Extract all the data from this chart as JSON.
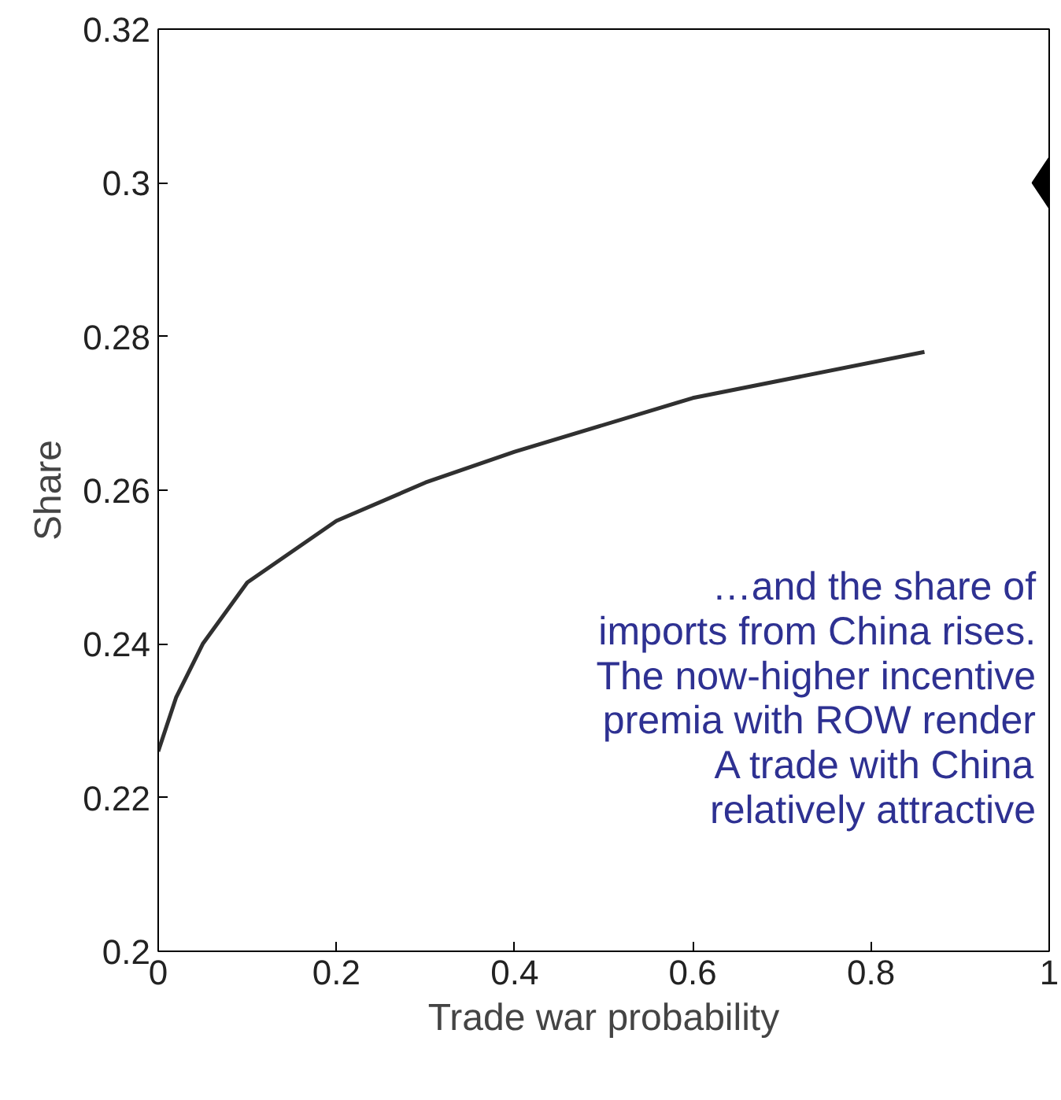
{
  "chart_data": {
    "type": "line",
    "xlabel": "Trade war probability",
    "ylabel": "Share",
    "xlim": [
      0,
      1
    ],
    "ylim": [
      0.2,
      0.32
    ],
    "xticks": [
      0,
      0.2,
      0.4,
      0.6,
      0.8,
      1
    ],
    "yticks": [
      0.2,
      0.22,
      0.24,
      0.26,
      0.28,
      0.3,
      0.32
    ],
    "grid": false,
    "series": [
      {
        "color": "#303030",
        "x": [
          0,
          0.02,
          0.05,
          0.1,
          0.2,
          0.3,
          0.4,
          0.6,
          0.86
        ],
        "values": [
          0.226,
          0.233,
          0.24,
          0.248,
          0.256,
          0.261,
          0.265,
          0.272,
          0.278
        ]
      },
      {
        "type": "scatter",
        "marker": "diamond",
        "color": "#000000",
        "x": [
          1
        ],
        "values": [
          0.3
        ]
      }
    ],
    "annotations": [
      "…and the share of\nimports from China rises.\nThe now-higher incentive\npremia with ROW render\nA trade with China\nrelatively attractive"
    ]
  }
}
